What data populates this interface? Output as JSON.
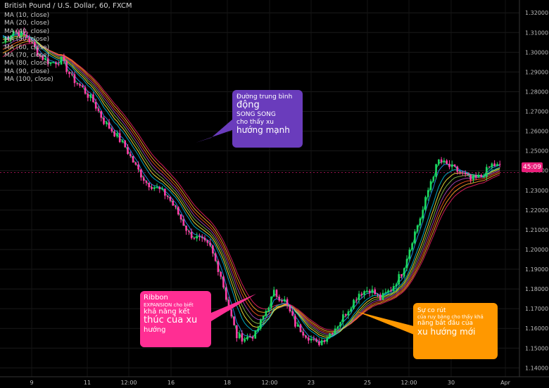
{
  "header": {
    "title": "British Pound / U.S. Dollar, 60, FXCM",
    "indicators": [
      "MA (10, close)",
      "MA (20, close)",
      "MA (40, close)",
      "MA (50, close)",
      "MA (60, close)",
      "MA (70, close)",
      "MA (80, close)",
      "MA (90, close)",
      "MA (100, close)"
    ]
  },
  "price_tag": "45:09",
  "callouts": {
    "parallel": {
      "l1": "Đường trung bình",
      "l2": "động",
      "l3": "SONG SONG",
      "l4": "cho thấy xu",
      "l5": "hướng mạnh",
      "color": "#6a3cbc"
    },
    "expansion": {
      "l1": "Ribbon",
      "l2": "EXPANSION cho biết",
      "l3": "khả năng kết",
      "l4": "thúc của xu",
      "l5": "hướng",
      "color": "#ff2e93"
    },
    "contraction": {
      "l1": "Sự co rút",
      "l2": "của ruy băng cho thấy khả",
      "l3": "năng bắt đầu của",
      "l4": "xu hướng mới",
      "color": "#ff9800"
    }
  },
  "chart_data": {
    "type": "line",
    "title": "British Pound / U.S. Dollar, 60, FXCM",
    "xlabel": "",
    "ylabel": "",
    "x_ticks": [
      "9",
      "11",
      "12:00",
      "16",
      "18",
      "12:00",
      "23",
      "25",
      "12:00",
      "30",
      "Apr"
    ],
    "y_ticks": [
      "1.32000",
      "1.31000",
      "1.30000",
      "1.29000",
      "1.28000",
      "1.27000",
      "1.26000",
      "1.25000",
      "1.24000",
      "1.23000",
      "1.22000",
      "1.21000",
      "1.20000",
      "1.19000",
      "1.18000",
      "1.17000",
      "1.16000",
      "1.15000",
      "1.14000"
    ],
    "ylim": [
      1.1355,
      1.3265
    ],
    "price_anchors": [
      [
        0,
        1.305
      ],
      [
        4,
        1.311
      ],
      [
        9,
        1.308
      ],
      [
        14,
        1.298
      ],
      [
        18,
        1.2945
      ],
      [
        22,
        1.296
      ],
      [
        26,
        1.287
      ],
      [
        30,
        1.2815
      ],
      [
        34,
        1.275
      ],
      [
        38,
        1.265
      ],
      [
        42,
        1.259
      ],
      [
        46,
        1.252
      ],
      [
        50,
        1.242
      ],
      [
        54,
        1.234
      ],
      [
        58,
        1.231
      ],
      [
        62,
        1.227
      ],
      [
        66,
        1.218
      ],
      [
        70,
        1.208
      ],
      [
        74,
        1.205
      ],
      [
        78,
        1.201
      ],
      [
        82,
        1.187
      ],
      [
        85,
        1.17
      ],
      [
        88,
        1.156
      ],
      [
        91,
        1.155
      ],
      [
        95,
        1.157
      ],
      [
        98,
        1.166
      ],
      [
        102,
        1.178
      ],
      [
        106,
        1.174
      ],
      [
        110,
        1.162
      ],
      [
        114,
        1.157
      ],
      [
        118,
        1.152
      ],
      [
        122,
        1.156
      ],
      [
        126,
        1.162
      ],
      [
        130,
        1.17
      ],
      [
        134,
        1.178
      ],
      [
        138,
        1.18
      ],
      [
        142,
        1.175
      ],
      [
        146,
        1.18
      ],
      [
        150,
        1.188
      ],
      [
        154,
        1.205
      ],
      [
        158,
        1.22
      ],
      [
        161,
        1.235
      ],
      [
        164,
        1.245
      ],
      [
        168,
        1.242
      ],
      [
        172,
        1.239
      ],
      [
        176,
        1.235
      ],
      [
        180,
        1.237
      ],
      [
        184,
        1.243
      ],
      [
        187,
        1.242
      ]
    ],
    "ma_periods": [
      10,
      20,
      40,
      50,
      60,
      70,
      80,
      90,
      100
    ],
    "ma_colors": [
      "#00e676",
      "#2196f3",
      "#00bcd4",
      "#ffeb3b",
      "#8bc34a",
      "#ab47bc",
      "#ff5722",
      "#ffa726",
      "#e91e63"
    ],
    "last_price": 1.239
  }
}
